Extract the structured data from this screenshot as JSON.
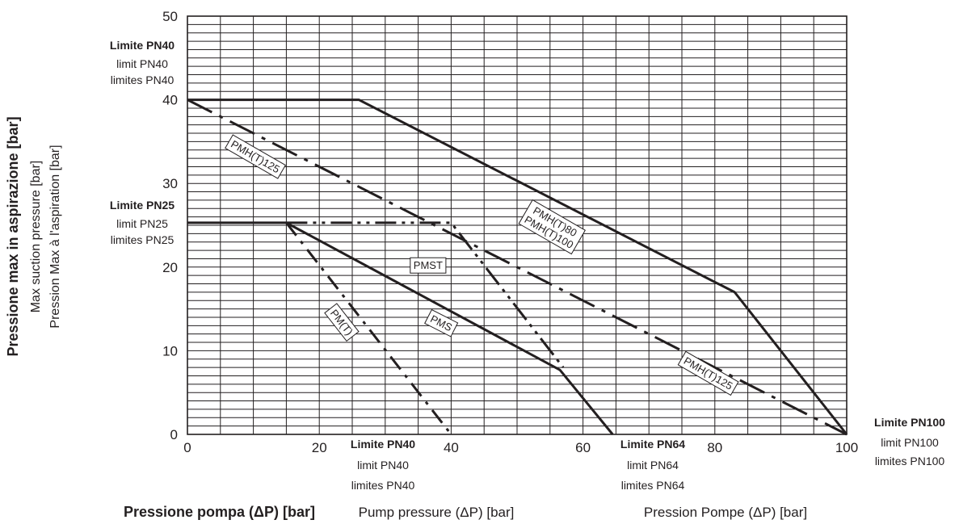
{
  "chart_data": {
    "type": "line",
    "xlabel_parts": [
      "Pressione pompa (ΔP) [bar]",
      "Pump pressure (ΔP) [bar]",
      "Pression Pompe  (ΔP)  [bar]"
    ],
    "ylabel_parts": [
      "Pressione max in aspirazione [bar]",
      "Max suction pressure [bar]",
      "Pression Max à l'aspiration [bar]"
    ],
    "xlim": [
      0,
      100
    ],
    "ylim": [
      0,
      50
    ],
    "x_ticks": [
      "0",
      "20",
      "40",
      "60",
      "80",
      "100"
    ],
    "y_ticks": [
      "0",
      "10",
      "20",
      "30",
      "40",
      "50"
    ],
    "grid": true,
    "limits": {
      "y_pn40": [
        "Limite PN40",
        "limit PN40",
        "limites PN40"
      ],
      "y_pn25": [
        "Limite PN25",
        "limit PN25",
        "limites PN25"
      ],
      "x_pn40": [
        "Limite PN40",
        "limit PN40",
        "limites PN40"
      ],
      "x_pn64": [
        "Limite PN64",
        "limit PN64",
        "limites PN64"
      ],
      "x_pn100": [
        "Limite PN100",
        "limit PN100",
        "limites PN100"
      ]
    },
    "series": [
      {
        "name": "PMH(T)80 PMH(T)100",
        "label_lines": [
          "PMH(T)80",
          "PMH(T)100"
        ],
        "style": "solid",
        "x": [
          0,
          26,
          83,
          100
        ],
        "y": [
          40,
          40,
          17,
          0
        ]
      },
      {
        "name": "PMH(T)125",
        "label_lines": [
          "PMH(T)125"
        ],
        "style": "dash-dot-long",
        "x": [
          0,
          100
        ],
        "y": [
          40,
          0
        ]
      },
      {
        "name": "PMST",
        "label_lines": [
          "PMST"
        ],
        "style": "dash-dot-dot",
        "x": [
          15,
          40,
          57
        ],
        "y": [
          25.3,
          25.3,
          8
        ]
      },
      {
        "name": "PMS",
        "label_lines": [
          "PMS"
        ],
        "style": "solid",
        "x": [
          0,
          15,
          56.5,
          64.5
        ],
        "y": [
          25.3,
          25.3,
          7.7,
          0
        ]
      },
      {
        "name": "PM(T)",
        "label_lines": [
          "PM(T)"
        ],
        "style": "dash-dot-short",
        "x": [
          15,
          40
        ],
        "y": [
          25.3,
          0
        ]
      }
    ],
    "labels": [
      {
        "series": 1,
        "x": 10.3,
        "y": 33.2,
        "angle": 30
      },
      {
        "series": 0,
        "x": 55.3,
        "y": 24.8,
        "angle": 30
      },
      {
        "series": 2,
        "x": 36.5,
        "y": 20.2,
        "angle": 0
      },
      {
        "series": 3,
        "x": 38.5,
        "y": 13.3,
        "angle": 27
      },
      {
        "series": 4,
        "x": 23.4,
        "y": 13.4,
        "angle": 52
      },
      {
        "series": 1,
        "x": 79,
        "y": 7.3,
        "angle": 30
      }
    ]
  }
}
